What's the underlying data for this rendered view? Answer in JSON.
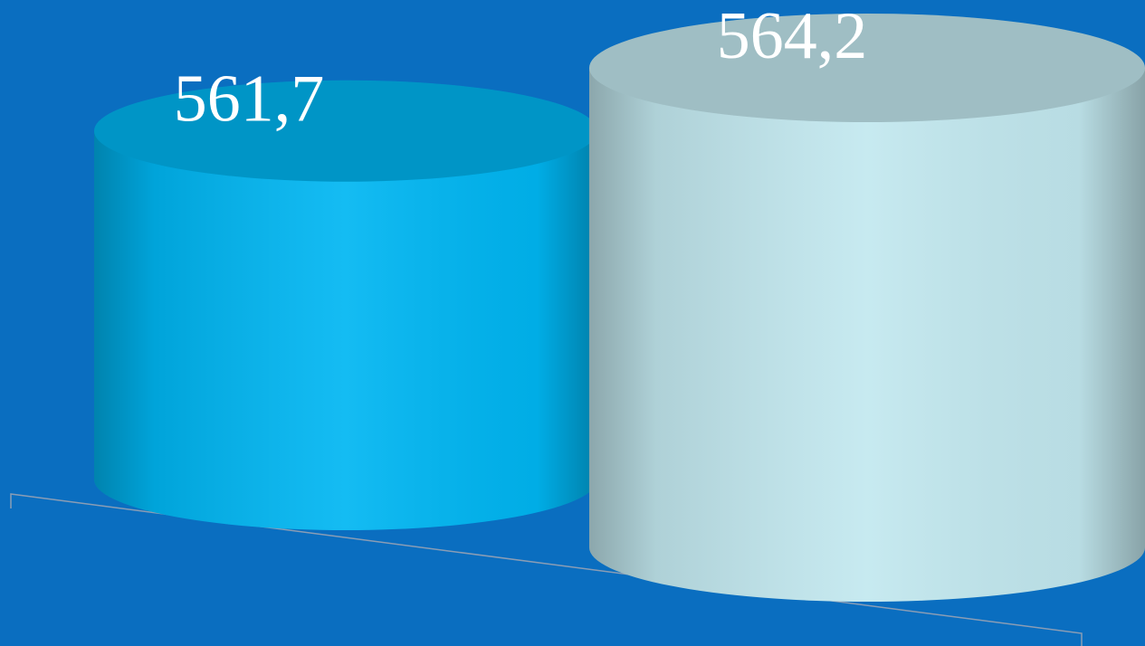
{
  "chart_data": {
    "type": "cylinder",
    "values": [
      561.7,
      564.2
    ],
    "value_labels": [
      "561,7",
      "564,2"
    ],
    "colors": [
      "#00b6f2",
      "#c2e8ef"
    ]
  }
}
